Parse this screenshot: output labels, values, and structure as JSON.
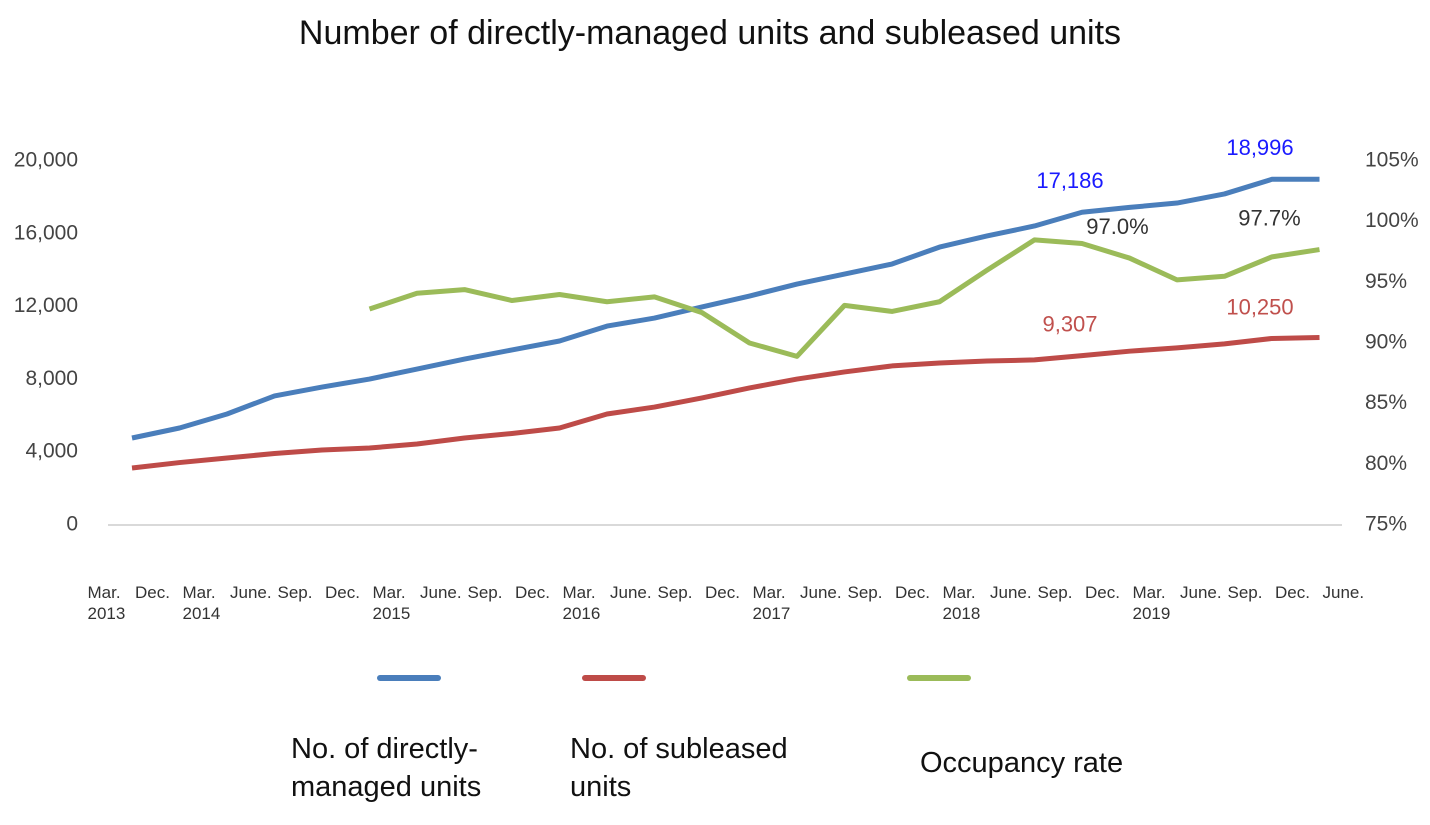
{
  "chart_data": {
    "type": "line",
    "title": "Number of directly-managed units and subleased units",
    "categories": [
      "Mar. 2013",
      "Dec.",
      "Mar. 2014",
      "June.",
      "Sep.",
      "Dec.",
      "Mar. 2015",
      "June.",
      "Sep.",
      "Dec.",
      "Mar. 2016",
      "June.",
      "Sep.",
      "Dec.",
      "Mar. 2017",
      "June.",
      "Sep.",
      "Dec.",
      "Mar. 2018",
      "June.",
      "Sep.",
      "Dec.",
      "Mar. 2019",
      "June.",
      "Sep.",
      "Dec.",
      "June."
    ],
    "series": [
      {
        "name": "No. of directly-managed units",
        "color": "#4a7ebb",
        "values": [
          null,
          4780,
          5330,
          6100,
          7090,
          7580,
          8020,
          8570,
          9120,
          9620,
          10110,
          10930,
          11370,
          11980,
          12580,
          13240,
          13790,
          14340,
          15270,
          15880,
          16430,
          17186,
          17450,
          17690,
          18190,
          18996,
          18996
        ],
        "value_labels": [
          null,
          null,
          null,
          null,
          null,
          null,
          null,
          null,
          null,
          null,
          null,
          null,
          null,
          null,
          null,
          null,
          null,
          null,
          null,
          null,
          null,
          "17,186",
          null,
          null,
          null,
          "18,996",
          null
        ],
        "label_color": "#1a1aff"
      },
      {
        "name": "No. of subleased units",
        "color": "#be4b48",
        "values": [
          null,
          3130,
          3430,
          3680,
          3930,
          4120,
          4230,
          4450,
          4780,
          5030,
          5330,
          6100,
          6480,
          6980,
          7530,
          8020,
          8410,
          8740,
          8900,
          9010,
          9070,
          9307,
          9550,
          9730,
          9950,
          10250,
          10300
        ],
        "value_labels": [
          null,
          null,
          null,
          null,
          null,
          null,
          null,
          null,
          null,
          null,
          null,
          null,
          null,
          null,
          null,
          null,
          null,
          null,
          null,
          null,
          null,
          "9,307",
          null,
          null,
          null,
          "10,250",
          null
        ],
        "label_color": "#c0504d"
      },
      {
        "name": "Occupancy rate",
        "color": "#9bbb59",
        "axis": "y2",
        "values": [
          null,
          null,
          null,
          null,
          null,
          null,
          92.8,
          94.1,
          94.4,
          93.5,
          94.0,
          93.4,
          93.8,
          92.5,
          90.0,
          88.9,
          93.1,
          92.6,
          93.4,
          96.0,
          98.5,
          98.2,
          97.0,
          95.2,
          95.5,
          97.1,
          97.7
        ],
        "value_labels": [
          null,
          null,
          null,
          null,
          null,
          null,
          null,
          null,
          null,
          null,
          null,
          null,
          null,
          null,
          null,
          null,
          null,
          null,
          null,
          null,
          null,
          null,
          "97.0%",
          null,
          null,
          null,
          "97.7%"
        ],
        "label_color": "#333333"
      }
    ],
    "ylim": [
      0,
      20000
    ],
    "yticks": [
      0,
      {
        "value": 4000,
        "label": "4,000"
      },
      {
        "value": 8000,
        "label": "8,000"
      },
      {
        "value": 12000,
        "label": "12,000"
      },
      {
        "value": 16000,
        "label": "16,000"
      },
      {
        "value": 20000,
        "label": "20,000"
      }
    ],
    "y2lim": [
      75,
      105
    ],
    "y2ticks": [
      {
        "value": 75,
        "label": "75%"
      },
      {
        "value": 80,
        "label": "80%"
      },
      {
        "value": 85,
        "label": "85%"
      },
      {
        "value": 90,
        "label": "90%"
      },
      {
        "value": 95,
        "label": "95%"
      },
      {
        "value": 100,
        "label": "100%"
      },
      {
        "value": 105,
        "label": "105%"
      }
    ],
    "legend": "bottom"
  }
}
